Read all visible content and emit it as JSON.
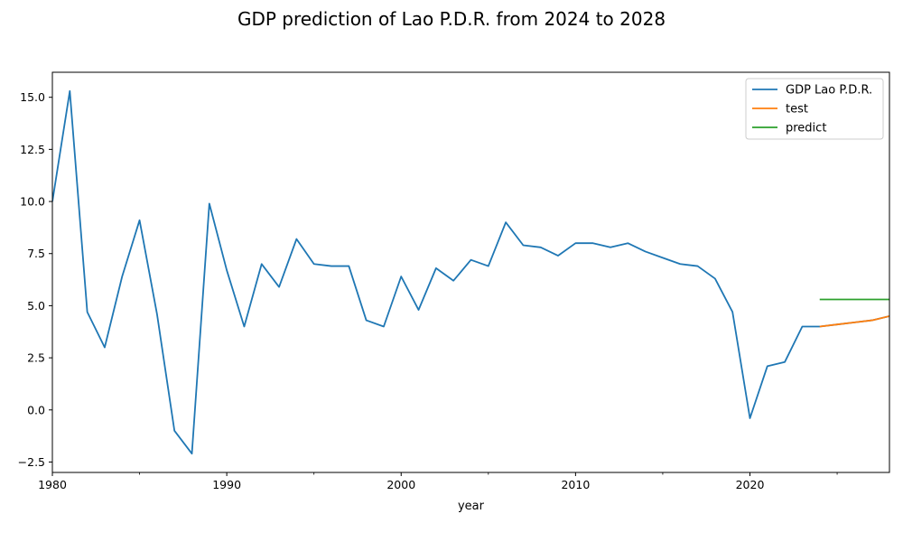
{
  "chart_data": {
    "type": "line",
    "title": "GDP prediction of Lao P.D.R. from 2024 to 2028",
    "xlabel": "year",
    "ylabel": "",
    "xlim": [
      1980,
      2028
    ],
    "ylim": [
      -3.0,
      16.2
    ],
    "x_ticks_major": [
      1980,
      1990,
      2000,
      2010,
      2020
    ],
    "x_ticks_minor": [
      1985,
      1995,
      2005,
      2015,
      2025
    ],
    "y_ticks": [
      -2.5,
      0.0,
      2.5,
      5.0,
      7.5,
      10.0,
      12.5,
      15.0
    ],
    "x_tick_labels": [
      "1980",
      "1990",
      "2000",
      "2010",
      "2020"
    ],
    "y_tick_labels": [
      "−2.5",
      "0.0",
      "2.5",
      "5.0",
      "7.5",
      "10.0",
      "12.5",
      "15.0"
    ],
    "grid": false,
    "legend_position": "top-right",
    "series": [
      {
        "name": "GDP Lao P.D.R.",
        "color": "#1f77b4",
        "x": [
          1980,
          1981,
          1982,
          1983,
          1984,
          1985,
          1986,
          1987,
          1988,
          1989,
          1990,
          1991,
          1992,
          1993,
          1994,
          1995,
          1996,
          1997,
          1998,
          1999,
          2000,
          2001,
          2002,
          2003,
          2004,
          2005,
          2006,
          2007,
          2008,
          2009,
          2010,
          2011,
          2012,
          2013,
          2014,
          2015,
          2016,
          2017,
          2018,
          2019,
          2020,
          2021,
          2022,
          2023,
          2024,
          2025,
          2026,
          2027,
          2028
        ],
        "values": [
          10.0,
          15.3,
          4.7,
          3.0,
          6.4,
          9.1,
          4.6,
          -1.0,
          -2.1,
          9.9,
          6.7,
          4.0,
          7.0,
          5.9,
          8.2,
          7.0,
          6.9,
          6.9,
          4.3,
          4.0,
          6.4,
          4.8,
          6.8,
          6.2,
          7.2,
          6.9,
          9.0,
          7.9,
          7.8,
          7.4,
          8.0,
          8.0,
          7.8,
          8.0,
          7.6,
          7.3,
          7.0,
          6.9,
          6.3,
          4.7,
          -0.4,
          2.1,
          2.3,
          4.0,
          4.0,
          4.1,
          4.2,
          4.3,
          4.5
        ]
      },
      {
        "name": "test",
        "color": "#ff7f0e",
        "x": [
          2024,
          2025,
          2026,
          2027,
          2028
        ],
        "values": [
          4.0,
          4.1,
          4.2,
          4.3,
          4.5
        ]
      },
      {
        "name": "predict",
        "color": "#2ca02c",
        "x": [
          2024,
          2025,
          2026,
          2027,
          2028
        ],
        "values": [
          5.3,
          5.3,
          5.3,
          5.3,
          5.3
        ]
      }
    ]
  }
}
